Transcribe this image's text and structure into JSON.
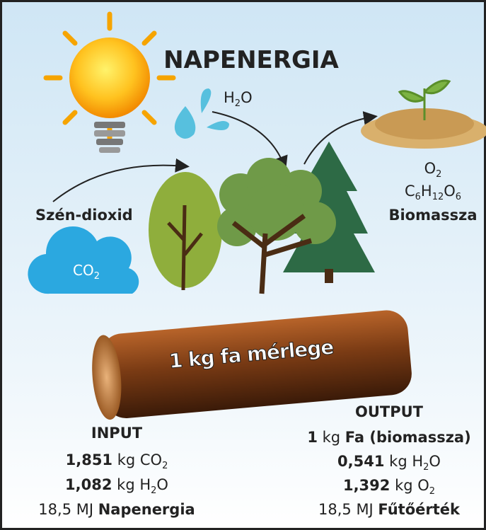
{
  "title": "NAPENERGIA",
  "water": [
    "H",
    "2",
    "O"
  ],
  "co2_source": {
    "label": "Szén-dioxid",
    "cloud": [
      "CO",
      "2"
    ]
  },
  "products": {
    "o2": [
      "O",
      "2"
    ],
    "glucose": [
      "C",
      "6",
      "H",
      "12",
      "O",
      "6"
    ],
    "label": "Biomassza"
  },
  "log_label": "1 kg fa mérlege",
  "input": {
    "title": "INPUT",
    "lines": [
      [
        "1,851",
        " kg CO",
        "2"
      ],
      [
        "1,082",
        " kg H",
        "2",
        "O"
      ],
      [
        "18,5 MJ ",
        "Napenergia"
      ]
    ]
  },
  "output": {
    "title": "OUTPUT",
    "lines": [
      [
        "1",
        " kg ",
        "Fa",
        " (biomassza)"
      ],
      [
        "0,541",
        " kg H",
        "2",
        "O"
      ],
      [
        "1,392",
        " kg O",
        "2"
      ],
      [
        "18,5 MJ ",
        "Fűtőérték"
      ]
    ]
  }
}
